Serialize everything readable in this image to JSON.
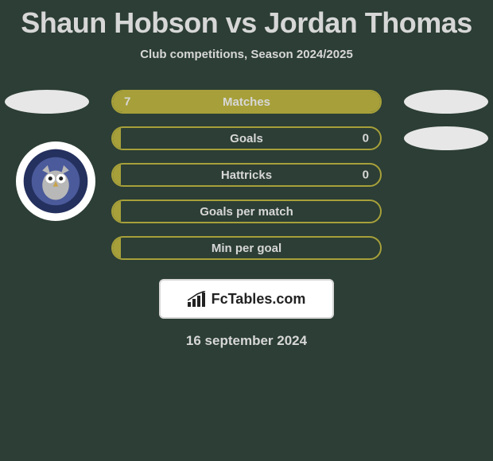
{
  "title": "Shaun Hobson vs Jordan Thomas",
  "subtitle": "Club competitions, Season 2024/2025",
  "date": "16 september 2024",
  "brand": "FcTables.com",
  "colors": {
    "bg": "#2c3e35",
    "accent": "#a7a03a",
    "text": "#d7d7d7",
    "oval": "#e7e7e7",
    "white": "#ffffff"
  },
  "rows": [
    {
      "metric": "Matches",
      "left": "7",
      "right": "",
      "fill_pct": 100,
      "left_oval": true,
      "right_oval": true
    },
    {
      "metric": "Goals",
      "left": "",
      "right": "0",
      "fill_pct": 3,
      "left_oval": false,
      "right_oval": true
    },
    {
      "metric": "Hattricks",
      "left": "",
      "right": "0",
      "fill_pct": 3,
      "left_oval": false,
      "right_oval": false
    },
    {
      "metric": "Goals per match",
      "left": "",
      "right": "",
      "fill_pct": 3,
      "left_oval": false,
      "right_oval": false
    },
    {
      "metric": "Min per goal",
      "left": "",
      "right": "",
      "fill_pct": 3,
      "left_oval": false,
      "right_oval": false
    }
  ],
  "crest": {
    "name": "oldham-athletic-crest",
    "outer": "#24305e",
    "inner": "#4a5a9a",
    "owl": "#b8b8b8"
  }
}
